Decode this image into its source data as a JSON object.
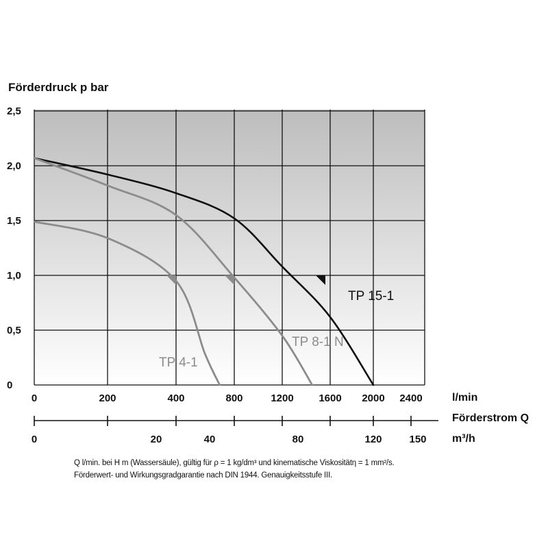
{
  "chart_data": {
    "type": "line",
    "ylabel": "Förderdruck p bar",
    "xlabel_unit": "l/min",
    "x2_label": "Förderstrom Q",
    "x2_unit": "m³/h",
    "ylim": [
      0,
      2.5
    ],
    "y_ticks": [
      "0",
      "0,5",
      "1,0",
      "1,5",
      "2,0",
      "2,5"
    ],
    "x_ticks": [
      "0",
      "200",
      "400",
      "800",
      "1200",
      "1600",
      "2000",
      "2400"
    ],
    "x2_ticks": [
      "0",
      "20",
      "40",
      "80",
      "120",
      "150"
    ],
    "grid": true,
    "series": [
      {
        "name": "TP 15-1",
        "color": "#111111",
        "points": [
          [
            0,
            2.07
          ],
          [
            200,
            1.92
          ],
          [
            400,
            1.75
          ],
          [
            800,
            1.52
          ],
          [
            1200,
            1.08
          ],
          [
            1600,
            0.62
          ],
          [
            2000,
            0.0
          ]
        ]
      },
      {
        "name": "TP 8-1 N",
        "color": "#8c8c8c",
        "points": [
          [
            0,
            2.07
          ],
          [
            200,
            1.82
          ],
          [
            400,
            1.55
          ],
          [
            800,
            0.98
          ],
          [
            1200,
            0.45
          ],
          [
            1450,
            0.0
          ]
        ]
      },
      {
        "name": "TP 4-1",
        "color": "#8c8c8c",
        "points": [
          [
            0,
            1.49
          ],
          [
            200,
            1.34
          ],
          [
            400,
            0.95
          ],
          [
            600,
            0.28
          ],
          [
            700,
            0.0
          ]
        ]
      }
    ],
    "markers": [
      {
        "series": "TP 4-1",
        "x": 400,
        "y": 1.0
      },
      {
        "series": "TP 8-1 N",
        "x": 800,
        "y": 1.0
      },
      {
        "series": "TP 15-1",
        "x": 1560,
        "y": 1.0
      }
    ]
  },
  "footnote": {
    "line1": "Q l/min. bei H m (Wassersäule), gültig für ρ = 1 kg/dm³ und kinematische Viskositätη = 1 mm²/s.",
    "line2": "Förderwert- und Wirkungsgradgarantie nach DIN 1944. Genauigkeitsstufe III."
  }
}
